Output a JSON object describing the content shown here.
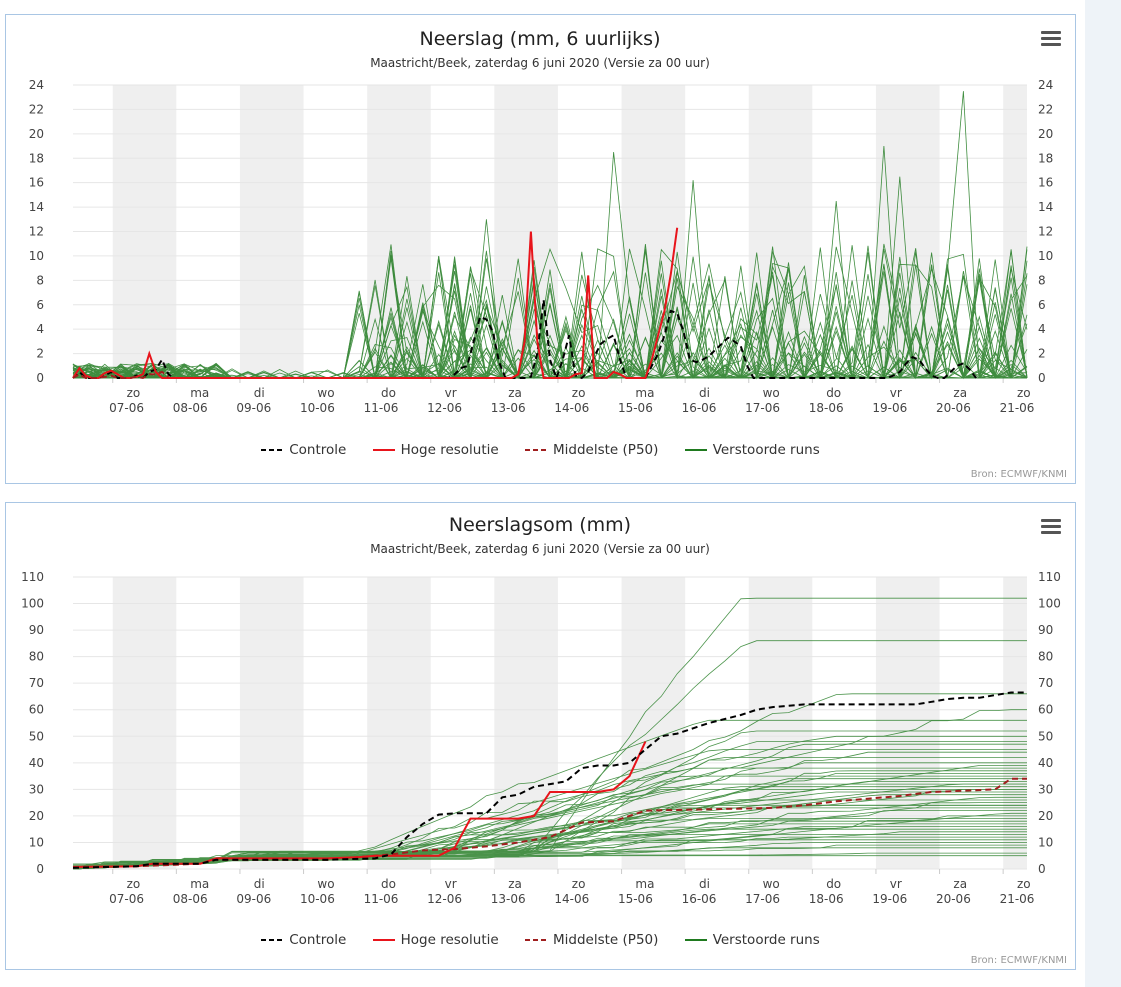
{
  "colors": {
    "controle": "#000000",
    "hoge": "#e8141b",
    "median": "#a01e1e",
    "runs": "#1f7a1f",
    "band": "#efefef",
    "grid": "#e6e6e6"
  },
  "legend": {
    "controle": "Controle",
    "hoge": "Hoge resolutie",
    "median": "Middelste (P50)",
    "runs": "Verstoorde runs"
  },
  "credit": "Bron: ECMWF/KNMI",
  "chart_data": [
    {
      "type": "line",
      "title": "Neerslag (mm, 6 uurlijks)",
      "subtitle": "Maastricht/Beek, zaterdag 6 juni 2020 (Versie za 00 uur)",
      "x_unit": "days since 06-06 00h (6-hourly steps)",
      "ylim": [
        0,
        24
      ],
      "yticks": [
        0,
        2,
        4,
        6,
        8,
        10,
        12,
        14,
        16,
        18,
        20,
        22,
        24
      ],
      "xtick_days": [
        "zo",
        "ma",
        "di",
        "wo",
        "do",
        "vr",
        "za",
        "zo",
        "ma",
        "di",
        "wo",
        "do",
        "vr",
        "za",
        "zo"
      ],
      "xtick_dates": [
        "07-06",
        "08-06",
        "09-06",
        "10-06",
        "11-06",
        "12-06",
        "13-06",
        "14-06",
        "15-06",
        "16-06",
        "17-06",
        "18-06",
        "19-06",
        "20-06",
        "21-06"
      ],
      "grid": true,
      "legend_position": "bottom",
      "series": [
        {
          "name": "Controle",
          "values": [
            0,
            0.5,
            0,
            0,
            0,
            0.2,
            0.5,
            0,
            0,
            0,
            0.2,
            0,
            0.5,
            0.7,
            1.5,
            0.3,
            0,
            0,
            0,
            0,
            0,
            0,
            0,
            0,
            0,
            0,
            0,
            0,
            0,
            0,
            0,
            0,
            0,
            0,
            0,
            0,
            0,
            0,
            0,
            0,
            0,
            0,
            0,
            0,
            0,
            0,
            0,
            0,
            0,
            0,
            0,
            0,
            0,
            0,
            0,
            0,
            0,
            0,
            0,
            0,
            0.3,
            0.8,
            1.0,
            3.0,
            5.0,
            4.8,
            3.8,
            1.3,
            0,
            0,
            0,
            0,
            0.1,
            2.0,
            6.4,
            1.5,
            0,
            1.5,
            3.5,
            0.2,
            0,
            0.5,
            1.8,
            2.8,
            3.2,
            3.5,
            1.5,
            0,
            0,
            0,
            0,
            1.0,
            2.0,
            3.5,
            5.5,
            5.3,
            3.8,
            1.5,
            1.3,
            1.5,
            1.8,
            2.3,
            2.8,
            3.3,
            3.0,
            2.6,
            1.0,
            0,
            0,
            0,
            0,
            0,
            0,
            0,
            0,
            0,
            0,
            0,
            0,
            0,
            0,
            0,
            0,
            0,
            0,
            0,
            0,
            0,
            0,
            0.2,
            0.5,
            1.2,
            1.7,
            1.5,
            0.8,
            0.2,
            0,
            0,
            0.5,
            1.0,
            1.2,
            0.7,
            0
          ]
        },
        {
          "name": "Hoge resolutie",
          "values": [
            0,
            0.8,
            0.2,
            0,
            0,
            0.4,
            0.6,
            0.3,
            0,
            0,
            0.1,
            0.3,
            2.0,
            0.5,
            0,
            0,
            0,
            0,
            0,
            0,
            0,
            0,
            0,
            0,
            0,
            0,
            0,
            0,
            0,
            0,
            0,
            0,
            0,
            0,
            0,
            0,
            0,
            0,
            0,
            0,
            0,
            0,
            0,
            0,
            0,
            0,
            0,
            0,
            0,
            0,
            0,
            0,
            0,
            0,
            0,
            0,
            0,
            0,
            0,
            0,
            0,
            0,
            0,
            0,
            0,
            0,
            0,
            0,
            0,
            0,
            0.3,
            3.0,
            12.0,
            3.0,
            0,
            0,
            0,
            0,
            0,
            0.3,
            0.4,
            8.4,
            0,
            0,
            0,
            0.5,
            0.3,
            0,
            0,
            0,
            0,
            1.5,
            3.5,
            5.5,
            8.5,
            12.3
          ]
        },
        {
          "name": "Middelste (P50)",
          "values": [
            0,
            0.3,
            0,
            0,
            0,
            0.1,
            0.2,
            0,
            0,
            0,
            0.1,
            0,
            0.3,
            0.3,
            0.5,
            0.1
          ]
        }
      ]
    },
    {
      "type": "line",
      "title": "Neerslagsom (mm)",
      "subtitle": "Maastricht/Beek, zaterdag 6 juni 2020 (Versie za 00 uur)",
      "x_unit": "days since 06-06 00h",
      "ylim": [
        0,
        110
      ],
      "yticks": [
        0,
        10,
        20,
        30,
        40,
        50,
        60,
        70,
        80,
        90,
        100,
        110
      ],
      "xtick_days": [
        "zo",
        "ma",
        "di",
        "wo",
        "do",
        "vr",
        "za",
        "zo",
        "ma",
        "di",
        "wo",
        "do",
        "vr",
        "za",
        "zo"
      ],
      "xtick_dates": [
        "07-06",
        "08-06",
        "09-06",
        "10-06",
        "11-06",
        "12-06",
        "13-06",
        "14-06",
        "15-06",
        "16-06",
        "17-06",
        "18-06",
        "19-06",
        "20-06",
        "21-06"
      ],
      "grid": true,
      "legend_position": "bottom",
      "series": [
        {
          "name": "Controle",
          "points": [
            [
              0,
              0.5
            ],
            [
              1,
              1
            ],
            [
              1.25,
              2
            ],
            [
              2,
              2
            ],
            [
              2.25,
              3.5
            ],
            [
              3,
              3.5
            ],
            [
              4,
              3.5
            ],
            [
              4.75,
              4
            ],
            [
              5,
              5.5
            ],
            [
              5.25,
              12
            ],
            [
              5.5,
              17
            ],
            [
              5.75,
              20.5
            ],
            [
              6,
              21
            ],
            [
              6.5,
              21
            ],
            [
              6.75,
              27
            ],
            [
              7,
              28
            ],
            [
              7.25,
              31
            ],
            [
              7.5,
              32
            ],
            [
              7.75,
              33
            ],
            [
              8,
              38
            ],
            [
              8.25,
              39
            ],
            [
              8.5,
              39
            ],
            [
              8.75,
              40
            ],
            [
              9,
              45
            ],
            [
              9.25,
              50
            ],
            [
              9.5,
              51
            ],
            [
              9.75,
              53
            ],
            [
              10,
              55
            ],
            [
              10.25,
              56.5
            ],
            [
              10.5,
              58
            ],
            [
              10.75,
              60
            ],
            [
              11,
              61
            ],
            [
              11.5,
              62
            ],
            [
              12,
              62
            ],
            [
              12.5,
              62
            ],
            [
              13,
              62
            ],
            [
              13.25,
              62
            ],
            [
              13.5,
              63
            ],
            [
              13.75,
              64
            ],
            [
              14,
              64.5
            ],
            [
              14.25,
              64.5
            ],
            [
              14.5,
              65.5
            ],
            [
              14.75,
              66.5
            ],
            [
              15,
              66.5
            ]
          ]
        },
        {
          "name": "Hoge resolutie",
          "points": [
            [
              0,
              0.8
            ],
            [
              1,
              1
            ],
            [
              1.25,
              2
            ],
            [
              2,
              2
            ],
            [
              2.25,
              4
            ],
            [
              3,
              4
            ],
            [
              4,
              4
            ],
            [
              4.5,
              4.5
            ],
            [
              4.75,
              5
            ],
            [
              5,
              5
            ],
            [
              5.25,
              5
            ],
            [
              5.5,
              5
            ],
            [
              5.75,
              5
            ],
            [
              6,
              8
            ],
            [
              6.25,
              19
            ],
            [
              6.5,
              19
            ],
            [
              6.75,
              19
            ],
            [
              7,
              19
            ],
            [
              7.25,
              20
            ],
            [
              7.5,
              29
            ],
            [
              7.75,
              29
            ],
            [
              8,
              29
            ],
            [
              8.25,
              29
            ],
            [
              8.5,
              30
            ],
            [
              8.75,
              35
            ],
            [
              9,
              48
            ]
          ]
        },
        {
          "name": "Middelste (P50)",
          "points": [
            [
              0,
              0.5
            ],
            [
              1,
              1
            ],
            [
              2,
              2
            ],
            [
              2.25,
              3.5
            ],
            [
              4,
              3.5
            ],
            [
              5,
              5.5
            ],
            [
              5.5,
              7
            ],
            [
              6,
              7.5
            ],
            [
              6.5,
              8.5
            ],
            [
              7,
              10
            ],
            [
              7.5,
              12
            ],
            [
              8,
              17.5
            ],
            [
              8.5,
              18
            ],
            [
              9,
              22
            ],
            [
              10,
              22.5
            ],
            [
              11,
              23
            ],
            [
              11.5,
              24
            ],
            [
              12,
              25.5
            ],
            [
              12.5,
              26.5
            ],
            [
              13,
              27.5
            ],
            [
              13.5,
              29
            ],
            [
              14,
              29.5
            ],
            [
              14.5,
              30
            ],
            [
              14.75,
              34
            ],
            [
              15,
              34
            ]
          ]
        }
      ]
    }
  ]
}
